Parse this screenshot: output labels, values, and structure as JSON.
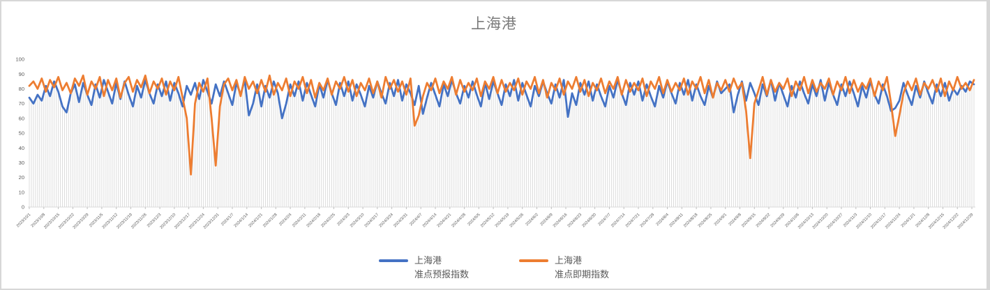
{
  "title": "上海港",
  "colors": {
    "series_forecast": "#4472C4",
    "series_spot": "#ED7D31",
    "dropline": "#DCDCDC",
    "axis_line": "#D9D9D9",
    "tick_mark": "#BFBFBF",
    "axis_label": "#595959",
    "title_text": "#7A7A7A",
    "frame_border": "#D7D7D7"
  },
  "legend": {
    "items": [
      {
        "line1": "上海港",
        "line2": "准点预报指数",
        "color": "#4472C4"
      },
      {
        "line1": "上海港",
        "line2": "准点即期指数",
        "color": "#ED7D31"
      }
    ]
  },
  "chart_data": {
    "type": "line",
    "title": "上海港",
    "xlabel": "",
    "ylabel": "",
    "ylim": [
      0,
      100
    ],
    "y_ticks": [
      0,
      10,
      20,
      30,
      40,
      50,
      60,
      70,
      80,
      90,
      100
    ],
    "grid": "vertical-droplines-per-day",
    "legend_position": "bottom",
    "x_start": "2023/10/1",
    "x_end": "2024/12/29",
    "point_interval_days": 2,
    "x_tick_labels": [
      "2023/10/1",
      "2023/10/8",
      "2023/10/15",
      "2023/10/22",
      "2023/10/29",
      "2023/11/5",
      "2023/11/12",
      "2023/11/19",
      "2023/11/26",
      "2023/12/3",
      "2023/12/10",
      "2023/12/17",
      "2023/12/24",
      "2023/12/31",
      "2024/1/7",
      "2024/1/14",
      "2024/1/21",
      "2024/1/28",
      "2024/2/4",
      "2024/2/11",
      "2024/2/18",
      "2024/2/25",
      "2024/3/3",
      "2024/3/10",
      "2024/3/17",
      "2024/3/24",
      "2024/3/31",
      "2024/4/7",
      "2024/4/14",
      "2024/4/21",
      "2024/4/28",
      "2024/5/5",
      "2024/5/12",
      "2024/5/19",
      "2024/5/26",
      "2024/6/2",
      "2024/6/9",
      "2024/6/16",
      "2024/6/23",
      "2024/6/30",
      "2024/7/7",
      "2024/7/14",
      "2024/7/21",
      "2024/7/28",
      "2024/8/4",
      "2024/8/11",
      "2024/8/18",
      "2024/8/25",
      "2024/9/1",
      "2024/9/8",
      "2024/9/15",
      "2024/9/22",
      "2024/9/29",
      "2024/10/6",
      "2024/10/13",
      "2024/10/20",
      "2024/10/27",
      "2024/11/3",
      "2024/11/10",
      "2024/11/17",
      "2024/11/24",
      "2024/12/1",
      "2024/12/8",
      "2024/12/15",
      "2024/12/22",
      "2024/12/29"
    ],
    "series": [
      {
        "name": "上海港 准点预报指数",
        "color": "#4472C4",
        "values": [
          74,
          70,
          76,
          72,
          82,
          75,
          85,
          78,
          68,
          64,
          77,
          83,
          71,
          84,
          76,
          69,
          83,
          74,
          86,
          78,
          70,
          84,
          73,
          85,
          76,
          68,
          82,
          74,
          86,
          77,
          70,
          83,
          75,
          85,
          72,
          84,
          77,
          68,
          82,
          76,
          84,
          73,
          86,
          78,
          70,
          83,
          75,
          85,
          77,
          69,
          84,
          76,
          86,
          62,
          70,
          83,
          68,
          82,
          74,
          85,
          77,
          60,
          70,
          83,
          75,
          85,
          72,
          84,
          76,
          68,
          83,
          74,
          86,
          77,
          69,
          84,
          75,
          85,
          72,
          83,
          76,
          68,
          82,
          74,
          85,
          77,
          70,
          84,
          75,
          86,
          72,
          83,
          77,
          69,
          82,
          63,
          74,
          84,
          76,
          68,
          83,
          75,
          86,
          77,
          70,
          82,
          74,
          85,
          76,
          68,
          84,
          73,
          85,
          77,
          69,
          83,
          75,
          86,
          72,
          84,
          76,
          68,
          82,
          75,
          85,
          77,
          70,
          83,
          74,
          86,
          61,
          77,
          69,
          84,
          76,
          85,
          72,
          83,
          75,
          68,
          82,
          74,
          86,
          77,
          69,
          84,
          76,
          85,
          72,
          83,
          75,
          68,
          82,
          74,
          85,
          77,
          70,
          84,
          76,
          86,
          72,
          83,
          75,
          69,
          82,
          74,
          85,
          77,
          80,
          83,
          64,
          76,
          85,
          72,
          84,
          77,
          69,
          83,
          75,
          86,
          72,
          84,
          76,
          68,
          82,
          74,
          85,
          77,
          70,
          83,
          75,
          86,
          72,
          84,
          76,
          69,
          83,
          75,
          85,
          77,
          68,
          82,
          74,
          85,
          76,
          70,
          83,
          75,
          65,
          67,
          72,
          84,
          76,
          69,
          82,
          74,
          85,
          77,
          70,
          83,
          75,
          84,
          72,
          80,
          76,
          82,
          78,
          85,
          83
        ]
      },
      {
        "name": "上海港 准点即期指数",
        "color": "#ED7D31",
        "values": [
          82,
          85,
          80,
          87,
          78,
          86,
          81,
          88,
          79,
          84,
          77,
          87,
          82,
          89,
          76,
          85,
          80,
          88,
          75,
          86,
          79,
          87,
          74,
          84,
          88,
          78,
          86,
          81,
          89,
          77,
          85,
          80,
          87,
          76,
          85,
          79,
          88,
          74,
          60,
          22,
          70,
          84,
          78,
          87,
          60,
          28,
          68,
          83,
          87,
          79,
          86,
          75,
          88,
          80,
          85,
          77,
          86,
          78,
          89,
          76,
          84,
          79,
          87,
          75,
          85,
          80,
          88,
          77,
          86,
          74,
          84,
          79,
          87,
          76,
          85,
          80,
          88,
          78,
          86,
          75,
          84,
          79,
          87,
          77,
          85,
          74,
          88,
          80,
          86,
          78,
          85,
          76,
          87,
          55,
          62,
          75,
          84,
          79,
          87,
          77,
          85,
          80,
          88,
          76,
          86,
          78,
          84,
          79,
          87,
          75,
          85,
          80,
          88,
          77,
          86,
          78,
          84,
          79,
          87,
          76,
          85,
          80,
          88,
          77,
          86,
          74,
          84,
          79,
          87,
          76,
          85,
          80,
          88,
          78,
          86,
          75,
          84,
          79,
          87,
          77,
          85,
          80,
          88,
          76,
          86,
          78,
          84,
          79,
          87,
          75,
          85,
          80,
          88,
          77,
          86,
          78,
          84,
          79,
          87,
          76,
          85,
          80,
          88,
          77,
          86,
          74,
          84,
          79,
          86,
          78,
          87,
          80,
          84,
          65,
          33,
          70,
          79,
          88,
          76,
          86,
          78,
          84,
          80,
          87,
          75,
          85,
          79,
          88,
          77,
          86,
          78,
          84,
          80,
          87,
          76,
          85,
          79,
          88,
          77,
          86,
          78,
          84,
          80,
          87,
          75,
          85,
          79,
          88,
          70,
          48,
          62,
          77,
          85,
          79,
          87,
          76,
          84,
          80,
          86,
          78,
          87,
          75,
          85,
          79,
          88,
          80,
          84,
          79,
          86
        ]
      }
    ]
  }
}
